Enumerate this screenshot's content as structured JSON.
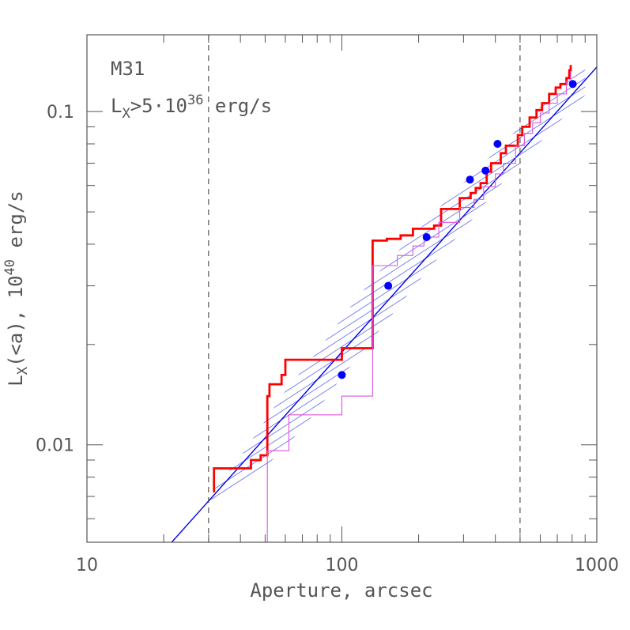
{
  "chart_data": {
    "type": "line",
    "title": "",
    "xlabel": "Aperture, arcsec",
    "ylabel_main": "L",
    "ylabel_sub": "X",
    "ylabel_mid": "(<a), 10",
    "ylabel_sup": "40",
    "ylabel_end": " erg/s",
    "xscale": "log",
    "yscale": "log",
    "xlim": [
      10,
      1000
    ],
    "ylim": [
      0.0051,
      0.17
    ],
    "x_ticks": [
      {
        "value": 10,
        "label": "10"
      },
      {
        "value": 100,
        "label": "100"
      },
      {
        "value": 1000,
        "label": "1000"
      }
    ],
    "y_ticks": [
      {
        "value": 0.01,
        "label": "0.01"
      },
      {
        "value": 0.1,
        "label": "0.1"
      }
    ],
    "annotations": {
      "name": "M31",
      "lum_main": "L",
      "lum_sub": "X",
      "lum_mid": ">5·10",
      "lum_sup": "36",
      "lum_end": " erg/s"
    },
    "colors": {
      "model_line": "#0000ee",
      "band": "#3344ee",
      "observed": "#ff0000",
      "secondary": "#dd55dd",
      "points": "#0000ff",
      "vlines": "#333333"
    },
    "vertical_lines": [
      30,
      500
    ],
    "model_line": {
      "x": [
        21.5,
        1000
      ],
      "y": [
        0.0051,
        0.136
      ]
    },
    "band": {
      "upper": {
        "x": [
          30,
          40,
          50,
          60,
          80,
          100,
          130,
          160,
          200,
          250,
          300,
          400,
          500,
          600,
          700,
          800,
          900
        ],
        "y": [
          0.007,
          0.0092,
          0.0118,
          0.0145,
          0.019,
          0.024,
          0.031,
          0.037,
          0.044,
          0.053,
          0.061,
          0.076,
          0.09,
          0.103,
          0.115,
          0.126,
          0.138
        ]
      },
      "lower": {
        "x": [
          900,
          800,
          700,
          600,
          500,
          400,
          300,
          250,
          200,
          160,
          130,
          100,
          80,
          60,
          50,
          40,
          30
        ],
        "y": [
          0.112,
          0.102,
          0.092,
          0.081,
          0.07,
          0.058,
          0.044,
          0.038,
          0.031,
          0.025,
          0.0205,
          0.016,
          0.0127,
          0.0098,
          0.0086,
          0.0074,
          0.0068
        ]
      }
    },
    "series": [
      {
        "role": "observed",
        "step": [
          [
            31.5,
            0.0072
          ],
          [
            31.5,
            0.0085
          ],
          [
            44,
            0.0085
          ],
          [
            44,
            0.009
          ],
          [
            48,
            0.009
          ],
          [
            48,
            0.0093
          ],
          [
            51,
            0.0093
          ],
          [
            51,
            0.014
          ],
          [
            52,
            0.014
          ],
          [
            52,
            0.0152
          ],
          [
            58,
            0.0152
          ],
          [
            58,
            0.0162
          ],
          [
            60,
            0.0162
          ],
          [
            60,
            0.018
          ],
          [
            100,
            0.018
          ],
          [
            100,
            0.0195
          ],
          [
            132,
            0.0195
          ],
          [
            132,
            0.041
          ],
          [
            150,
            0.041
          ],
          [
            150,
            0.0415
          ],
          [
            170,
            0.0415
          ],
          [
            170,
            0.0425
          ],
          [
            190,
            0.0425
          ],
          [
            190,
            0.0445
          ],
          [
            230,
            0.0445
          ],
          [
            230,
            0.0455
          ],
          [
            245,
            0.0455
          ],
          [
            245,
            0.051
          ],
          [
            290,
            0.051
          ],
          [
            290,
            0.055
          ],
          [
            320,
            0.055
          ],
          [
            320,
            0.057
          ],
          [
            335,
            0.057
          ],
          [
            335,
            0.059
          ],
          [
            350,
            0.059
          ],
          [
            350,
            0.061
          ],
          [
            370,
            0.061
          ],
          [
            370,
            0.066
          ],
          [
            385,
            0.066
          ],
          [
            385,
            0.07
          ],
          [
            420,
            0.07
          ],
          [
            420,
            0.075
          ],
          [
            440,
            0.075
          ],
          [
            440,
            0.079
          ],
          [
            490,
            0.079
          ],
          [
            490,
            0.085
          ],
          [
            510,
            0.085
          ],
          [
            510,
            0.09
          ],
          [
            545,
            0.09
          ],
          [
            545,
            0.096
          ],
          [
            580,
            0.096
          ],
          [
            580,
            0.101
          ],
          [
            610,
            0.101
          ],
          [
            610,
            0.106
          ],
          [
            650,
            0.106
          ],
          [
            650,
            0.113
          ],
          [
            690,
            0.113
          ],
          [
            690,
            0.118
          ],
          [
            720,
            0.118
          ],
          [
            720,
            0.121
          ],
          [
            760,
            0.121
          ],
          [
            760,
            0.126
          ],
          [
            780,
            0.126
          ],
          [
            780,
            0.133
          ],
          [
            790,
            0.133
          ],
          [
            790,
            0.138
          ]
        ]
      },
      {
        "role": "secondary",
        "step": [
          [
            51,
            0.005
          ],
          [
            51,
            0.0096
          ],
          [
            62,
            0.0096
          ],
          [
            62,
            0.0123
          ],
          [
            100,
            0.0123
          ],
          [
            100,
            0.014
          ],
          [
            132,
            0.014
          ],
          [
            132,
            0.0345
          ],
          [
            165,
            0.0345
          ],
          [
            165,
            0.037
          ],
          [
            190,
            0.037
          ],
          [
            190,
            0.0395
          ],
          [
            210,
            0.0395
          ],
          [
            210,
            0.042
          ],
          [
            240,
            0.042
          ],
          [
            240,
            0.0465
          ],
          [
            290,
            0.0465
          ],
          [
            290,
            0.0515
          ],
          [
            330,
            0.0515
          ],
          [
            330,
            0.0545
          ],
          [
            360,
            0.0545
          ],
          [
            360,
            0.0595
          ],
          [
            400,
            0.0595
          ],
          [
            400,
            0.065
          ],
          [
            430,
            0.065
          ],
          [
            430,
            0.07
          ],
          [
            480,
            0.07
          ],
          [
            480,
            0.079
          ],
          [
            520,
            0.079
          ],
          [
            520,
            0.086
          ],
          [
            560,
            0.086
          ],
          [
            560,
            0.0925
          ],
          [
            600,
            0.0925
          ],
          [
            600,
            0.099
          ],
          [
            650,
            0.099
          ],
          [
            650,
            0.106
          ],
          [
            700,
            0.106
          ],
          [
            700,
            0.113
          ],
          [
            760,
            0.113
          ],
          [
            760,
            0.123
          ],
          [
            790,
            0.123
          ],
          [
            790,
            0.132
          ]
        ]
      }
    ],
    "points": {
      "x": [
        100,
        152,
        215,
        318,
        366,
        408,
        805
      ],
      "y": [
        0.0162,
        0.03,
        0.042,
        0.0625,
        0.0665,
        0.08,
        0.121
      ]
    }
  }
}
